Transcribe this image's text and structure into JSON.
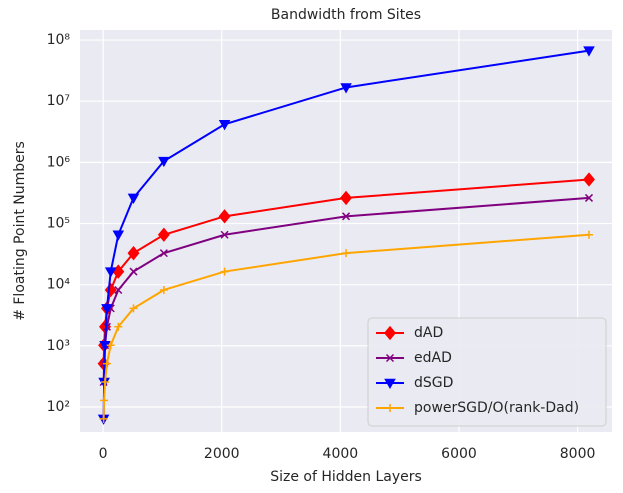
{
  "chart_data": {
    "type": "line",
    "title": "Bandwidth from Sites",
    "x_label": "Size of Hidden Layers",
    "y_label": "# Floating Point Numbers",
    "x": [
      8,
      16,
      32,
      64,
      128,
      256,
      512,
      1024,
      2048,
      4096,
      8192
    ],
    "series": [
      {
        "name": "dAD",
        "color": "#ff0000",
        "marker": "diamond",
        "values": [
          512,
          1024,
          2048,
          4096,
          8192,
          16384,
          32768,
          65536,
          131072,
          262144,
          524288
        ]
      },
      {
        "name": "edAD",
        "color": "#800080",
        "marker": "x",
        "values": [
          256,
          512,
          1024,
          2048,
          4096,
          8192,
          16384,
          32768,
          65536,
          131072,
          262144
        ]
      },
      {
        "name": "dSGD",
        "color": "#0000ff",
        "marker": "triangle-down",
        "values": [
          64,
          256,
          1024,
          4096,
          16384,
          65536,
          262144,
          1048576,
          4194304,
          16777216,
          67108864
        ]
      },
      {
        "name": "powerSGD/O(rank-Dad)",
        "color": "#ffa500",
        "marker": "plus",
        "values": [
          64,
          128,
          256,
          512,
          1024,
          2048,
          4096,
          8192,
          16384,
          32768,
          65536
        ]
      }
    ],
    "xlim": [
      -390,
      8580
    ],
    "xticks": [
      0,
      2000,
      4000,
      6000,
      8000
    ],
    "ylim": [
      39,
      146000000
    ],
    "y_log": true,
    "yticks": [
      {
        "value": 100,
        "label": "10²"
      },
      {
        "value": 1000,
        "label": "10³"
      },
      {
        "value": 10000,
        "label": "10⁴"
      },
      {
        "value": 100000,
        "label": "10⁵"
      },
      {
        "value": 1000000,
        "label": "10⁶"
      },
      {
        "value": 10000000,
        "label": "10⁷"
      },
      {
        "value": 100000000,
        "label": "10⁸"
      }
    ],
    "grid": true,
    "legend": "lower right"
  }
}
